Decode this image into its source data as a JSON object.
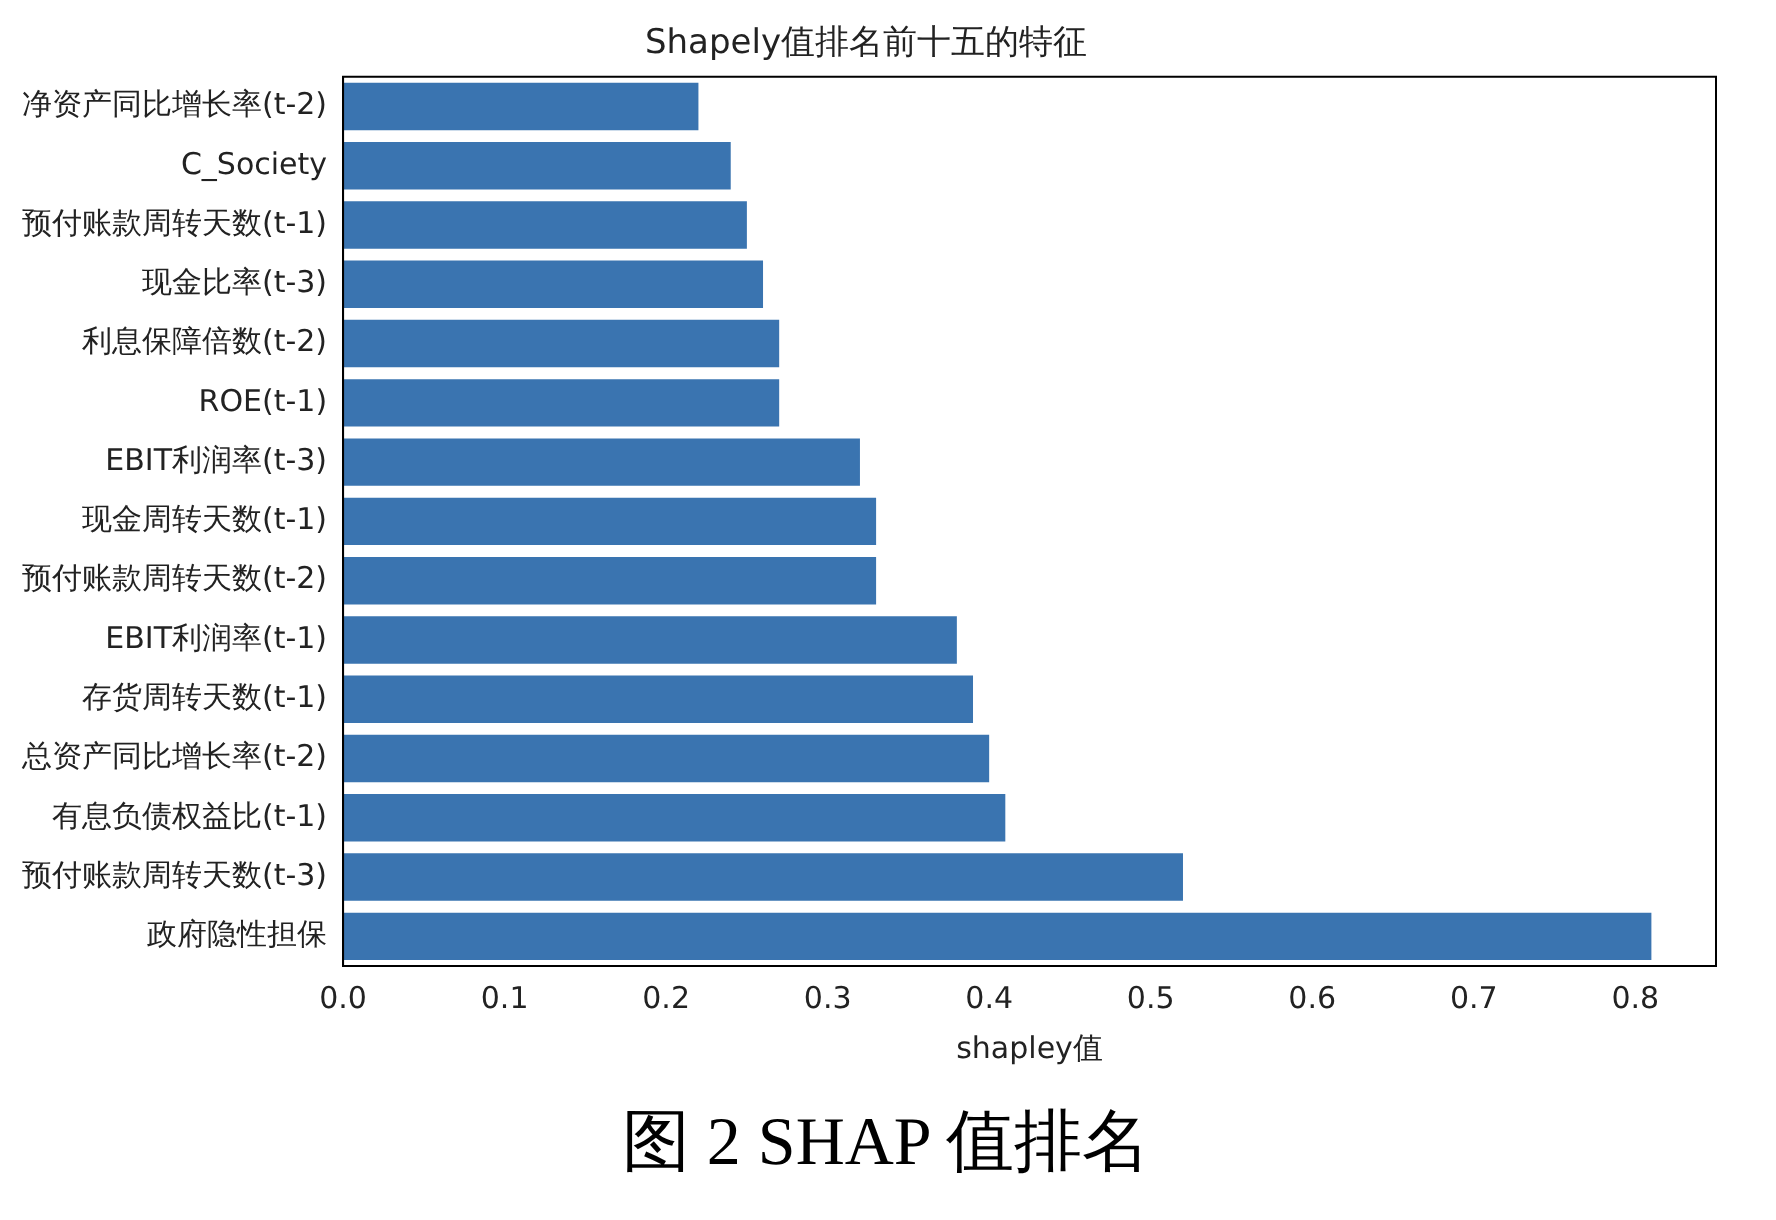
{
  "chart_data": {
    "type": "bar",
    "orientation": "horizontal",
    "title": "Shapely值排名前十五的特征",
    "xlabel": "shapley值",
    "categories": [
      "净资产同比增长率(t-2)",
      "C_Society",
      "预付账款周转天数(t-1)",
      "现金比率(t-3)",
      "利息保障倍数(t-2)",
      "ROE(t-1)",
      "EBIT利润率(t-3)",
      "现金周转天数(t-1)",
      "预付账款周转天数(t-2)",
      "EBIT利润率(t-1)",
      "存货周转天数(t-1)",
      "总资产同比增长率(t-2)",
      "有息负债权益比(t-1)",
      "预付账款周转天数(t-3)",
      "政府隐性担保"
    ],
    "values": [
      0.22,
      0.24,
      0.25,
      0.26,
      0.27,
      0.27,
      0.32,
      0.33,
      0.33,
      0.38,
      0.39,
      0.4,
      0.41,
      0.52,
      0.81
    ],
    "color": "#3a74b0",
    "xlim": [
      0,
      0.85
    ],
    "xticks": [
      {
        "value": 0,
        "label": "0.0"
      },
      0.1,
      0.2,
      0.3,
      0.4,
      0.5,
      0.6,
      0.7,
      0.8
    ],
    "grid": false,
    "legend": false,
    "annotations": [
      "图 2 SHAP 值排名"
    ]
  }
}
